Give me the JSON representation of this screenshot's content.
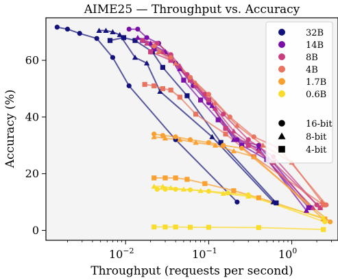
{
  "chart_data": {
    "type": "line",
    "title": "AIME25 — Throughput vs. Accuracy",
    "xlabel": "Throughput (requests per second)",
    "ylabel": "Accuracy (%)",
    "xscale": "log",
    "xlim": [
      0.0011,
      3.6
    ],
    "ylim": [
      -3.5,
      75
    ],
    "x_ticks": [
      {
        "value": 0.01,
        "base": "10",
        "exp": "−2"
      },
      {
        "value": 0.1,
        "base": "10",
        "exp": "−1"
      },
      {
        "value": 1,
        "base": "10",
        "exp": "0"
      }
    ],
    "y_ticks": [
      0,
      20,
      40,
      60
    ],
    "grid": false,
    "legend_position": "top-right",
    "legend_models": [
      {
        "name": "32B",
        "color": "#13117a"
      },
      {
        "name": "14B",
        "color": "#7a0fa8"
      },
      {
        "name": "8B",
        "color": "#c93f7e"
      },
      {
        "name": "4B",
        "color": "#e8735e"
      },
      {
        "name": "1.7B",
        "color": "#f9a030"
      },
      {
        "name": "0.6B",
        "color": "#f9dc2c"
      }
    ],
    "legend_precisions": [
      {
        "name": "16-bit",
        "marker": "circle"
      },
      {
        "name": "8-bit",
        "marker": "triangle"
      },
      {
        "name": "4-bit",
        "marker": "square"
      }
    ],
    "series": [
      {
        "model": "32B",
        "precision": "16-bit",
        "marker": "circle",
        "color": "#13117a",
        "points": [
          [
            0.0015,
            71.7
          ],
          [
            0.002,
            71
          ],
          [
            0.0028,
            69.5
          ],
          [
            0.0045,
            67.7
          ],
          [
            0.007,
            61
          ],
          [
            0.011,
            51
          ],
          [
            0.04,
            32
          ],
          [
            0.22,
            10
          ]
        ]
      },
      {
        "model": "32B",
        "precision": "8-bit",
        "marker": "triangle",
        "color": "#13117a",
        "points": [
          [
            0.0048,
            70.5
          ],
          [
            0.0058,
            70.5
          ],
          [
            0.007,
            70
          ],
          [
            0.0085,
            69
          ],
          [
            0.013,
            61
          ],
          [
            0.018,
            59
          ],
          [
            0.026,
            49
          ],
          [
            0.11,
            33
          ],
          [
            0.6,
            10
          ]
        ]
      },
      {
        "model": "32B",
        "precision": "4-bit",
        "marker": "square",
        "color": "#13117a",
        "points": [
          [
            0.0065,
            67
          ],
          [
            0.0095,
            68
          ],
          [
            0.013,
            67
          ],
          [
            0.021,
            63
          ],
          [
            0.028,
            57.5
          ],
          [
            0.055,
            47.5
          ],
          [
            0.14,
            31
          ],
          [
            0.65,
            9.7
          ]
        ]
      },
      {
        "model": "14B",
        "precision": "16-bit",
        "marker": "circle",
        "color": "#7a0fa8",
        "points": [
          [
            0.011,
            71
          ],
          [
            0.014,
            71
          ],
          [
            0.018,
            68
          ],
          [
            0.025,
            66
          ],
          [
            0.04,
            59
          ],
          [
            0.065,
            51
          ],
          [
            0.1,
            45
          ],
          [
            0.22,
            32
          ],
          [
            0.4,
            30
          ],
          [
            1.7,
            8
          ]
        ]
      },
      {
        "model": "14B",
        "precision": "8-bit",
        "marker": "triangle",
        "color": "#7a0fa8",
        "points": [
          [
            0.014,
            68
          ],
          [
            0.02,
            66
          ],
          [
            0.03,
            63
          ],
          [
            0.045,
            57
          ],
          [
            0.07,
            51
          ],
          [
            0.11,
            44
          ],
          [
            0.2,
            32
          ],
          [
            0.4,
            29
          ],
          [
            1.5,
            7
          ]
        ]
      },
      {
        "model": "14B",
        "precision": "4-bit",
        "marker": "square",
        "color": "#7a0fa8",
        "points": [
          [
            0.016,
            67
          ],
          [
            0.022,
            64
          ],
          [
            0.035,
            61
          ],
          [
            0.05,
            53
          ],
          [
            0.08,
            46
          ],
          [
            0.13,
            39
          ],
          [
            0.25,
            30
          ],
          [
            0.5,
            25
          ],
          [
            1.6,
            8
          ]
        ]
      },
      {
        "model": "8B",
        "precision": "16-bit",
        "marker": "circle",
        "color": "#c93f7e",
        "points": [
          [
            0.016,
            67
          ],
          [
            0.024,
            66
          ],
          [
            0.035,
            62
          ],
          [
            0.055,
            55
          ],
          [
            0.09,
            48
          ],
          [
            0.15,
            41
          ],
          [
            0.3,
            32
          ],
          [
            0.6,
            26
          ],
          [
            2,
            9
          ]
        ]
      },
      {
        "model": "8B",
        "precision": "8-bit",
        "marker": "triangle",
        "color": "#c93f7e",
        "points": [
          [
            0.018,
            66
          ],
          [
            0.028,
            63
          ],
          [
            0.045,
            58
          ],
          [
            0.07,
            51
          ],
          [
            0.12,
            43
          ],
          [
            0.2,
            35
          ],
          [
            0.4,
            28
          ],
          [
            1.8,
            8
          ]
        ]
      },
      {
        "model": "8B",
        "precision": "4-bit",
        "marker": "square",
        "color": "#c93f7e",
        "points": [
          [
            0.02,
            63
          ],
          [
            0.035,
            60
          ],
          [
            0.06,
            53
          ],
          [
            0.1,
            46
          ],
          [
            0.16,
            36
          ],
          [
            0.3,
            30
          ],
          [
            0.6,
            24
          ],
          [
            2.2,
            8
          ]
        ]
      },
      {
        "model": "4B",
        "precision": "16-bit",
        "marker": "circle",
        "color": "#e8735e",
        "points": [
          [
            0.022,
            65
          ],
          [
            0.035,
            61
          ],
          [
            0.06,
            54
          ],
          [
            0.1,
            48
          ],
          [
            0.18,
            40
          ],
          [
            0.35,
            33
          ],
          [
            0.7,
            29
          ],
          [
            2.6,
            9
          ]
        ]
      },
      {
        "model": "4B",
        "precision": "8-bit",
        "marker": "triangle",
        "color": "#e8735e",
        "points": [
          [
            0.025,
            63
          ],
          [
            0.04,
            59
          ],
          [
            0.07,
            52
          ],
          [
            0.12,
            45
          ],
          [
            0.22,
            37
          ],
          [
            0.45,
            30
          ],
          [
            1,
            24
          ],
          [
            2.3,
            10
          ]
        ]
      },
      {
        "model": "4B",
        "precision": "4-bit",
        "marker": "square",
        "color": "#e8735e",
        "points": [
          [
            0.017,
            51.5
          ],
          [
            0.022,
            51
          ],
          [
            0.028,
            50
          ],
          [
            0.035,
            49.5
          ],
          [
            0.045,
            47
          ],
          [
            0.07,
            41
          ],
          [
            0.16,
            34
          ],
          [
            0.35,
            26
          ],
          [
            2.4,
            9
          ]
        ]
      },
      {
        "model": "1.7B",
        "precision": "16-bit",
        "marker": "circle",
        "color": "#f9a030",
        "points": [
          [
            0.022,
            34
          ],
          [
            0.028,
            33.5
          ],
          [
            0.04,
            33
          ],
          [
            0.06,
            32
          ],
          [
            0.1,
            31
          ],
          [
            0.15,
            30
          ],
          [
            0.25,
            29
          ],
          [
            2.9,
            3
          ]
        ]
      },
      {
        "model": "1.7B",
        "precision": "8-bit",
        "marker": "triangle",
        "color": "#f9a030",
        "points": [
          [
            0.022,
            33
          ],
          [
            0.03,
            32.5
          ],
          [
            0.045,
            32
          ],
          [
            0.07,
            31
          ],
          [
            0.12,
            30
          ],
          [
            0.2,
            28
          ],
          [
            0.35,
            26
          ],
          [
            2.4,
            4
          ]
        ]
      },
      {
        "model": "1.7B",
        "precision": "4-bit",
        "marker": "square",
        "color": "#f9a030",
        "points": [
          [
            0.022,
            18.5
          ],
          [
            0.03,
            18.5
          ],
          [
            0.04,
            18.5
          ],
          [
            0.055,
            18
          ],
          [
            0.09,
            16.5
          ],
          [
            0.2,
            14
          ],
          [
            0.4,
            11.5
          ],
          [
            2.5,
            4
          ]
        ]
      },
      {
        "model": "0.6B",
        "precision": "16-bit",
        "marker": "circle",
        "color": "#f9dc2c",
        "points": [
          [
            0.024,
            14.5
          ],
          [
            0.03,
            14.5
          ],
          [
            0.04,
            14.5
          ],
          [
            0.06,
            14.3
          ],
          [
            0.1,
            13.8
          ],
          [
            0.17,
            13.2
          ],
          [
            0.3,
            12.5
          ],
          [
            2.5,
            3
          ]
        ]
      },
      {
        "model": "0.6B",
        "precision": "8-bit",
        "marker": "triangle",
        "color": "#f9dc2c",
        "points": [
          [
            0.022,
            15.5
          ],
          [
            0.028,
            15.5
          ],
          [
            0.035,
            15
          ],
          [
            0.05,
            14.5
          ],
          [
            0.08,
            14
          ],
          [
            0.15,
            13
          ],
          [
            0.3,
            12
          ],
          [
            2.4,
            4.5
          ]
        ]
      },
      {
        "model": "0.6B",
        "precision": "4-bit",
        "marker": "square",
        "color": "#f9dc2c",
        "points": [
          [
            0.022,
            1.2
          ],
          [
            0.03,
            1.2
          ],
          [
            0.04,
            1.2
          ],
          [
            0.06,
            1.1
          ],
          [
            0.1,
            1.1
          ],
          [
            0.4,
            1
          ],
          [
            2.4,
            0.3
          ]
        ]
      }
    ]
  }
}
